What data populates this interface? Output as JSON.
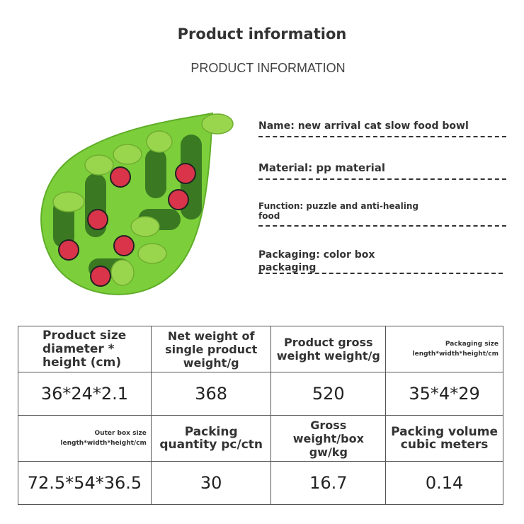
{
  "header": {
    "title": "Product information",
    "subtitle": "PRODUCT INFORMATION"
  },
  "product_image": {
    "icon": "leaf-cat-slow-feeder-image",
    "colors": {
      "leaf": "#7ccf3a",
      "bug": "#d9344a"
    }
  },
  "info": [
    {
      "label": "Name: new arrival cat slow food bowl"
    },
    {
      "label": "Material: pp material"
    },
    {
      "label": "Function: puzzle and anti-healing food"
    },
    {
      "label": "Packaging: color box packaging"
    }
  ],
  "table": {
    "rows": [
      {
        "headers": [
          "Product size diameter * height (cm)",
          "Net weight of single product weight/g",
          "Product gross weight weight/g",
          "Packaging size length*width*height/cm"
        ],
        "values": [
          "36*24*2.1",
          "368",
          "520",
          "35*4*29"
        ]
      },
      {
        "headers": [
          "Outer box size length*width*height/cm",
          "Packing quantity pc/ctn",
          "Gross weight/box gw/kg",
          "Packing volume cubic meters"
        ],
        "values": [
          "72.5*54*36.5",
          "30",
          "16.7",
          "0.14"
        ]
      }
    ]
  }
}
